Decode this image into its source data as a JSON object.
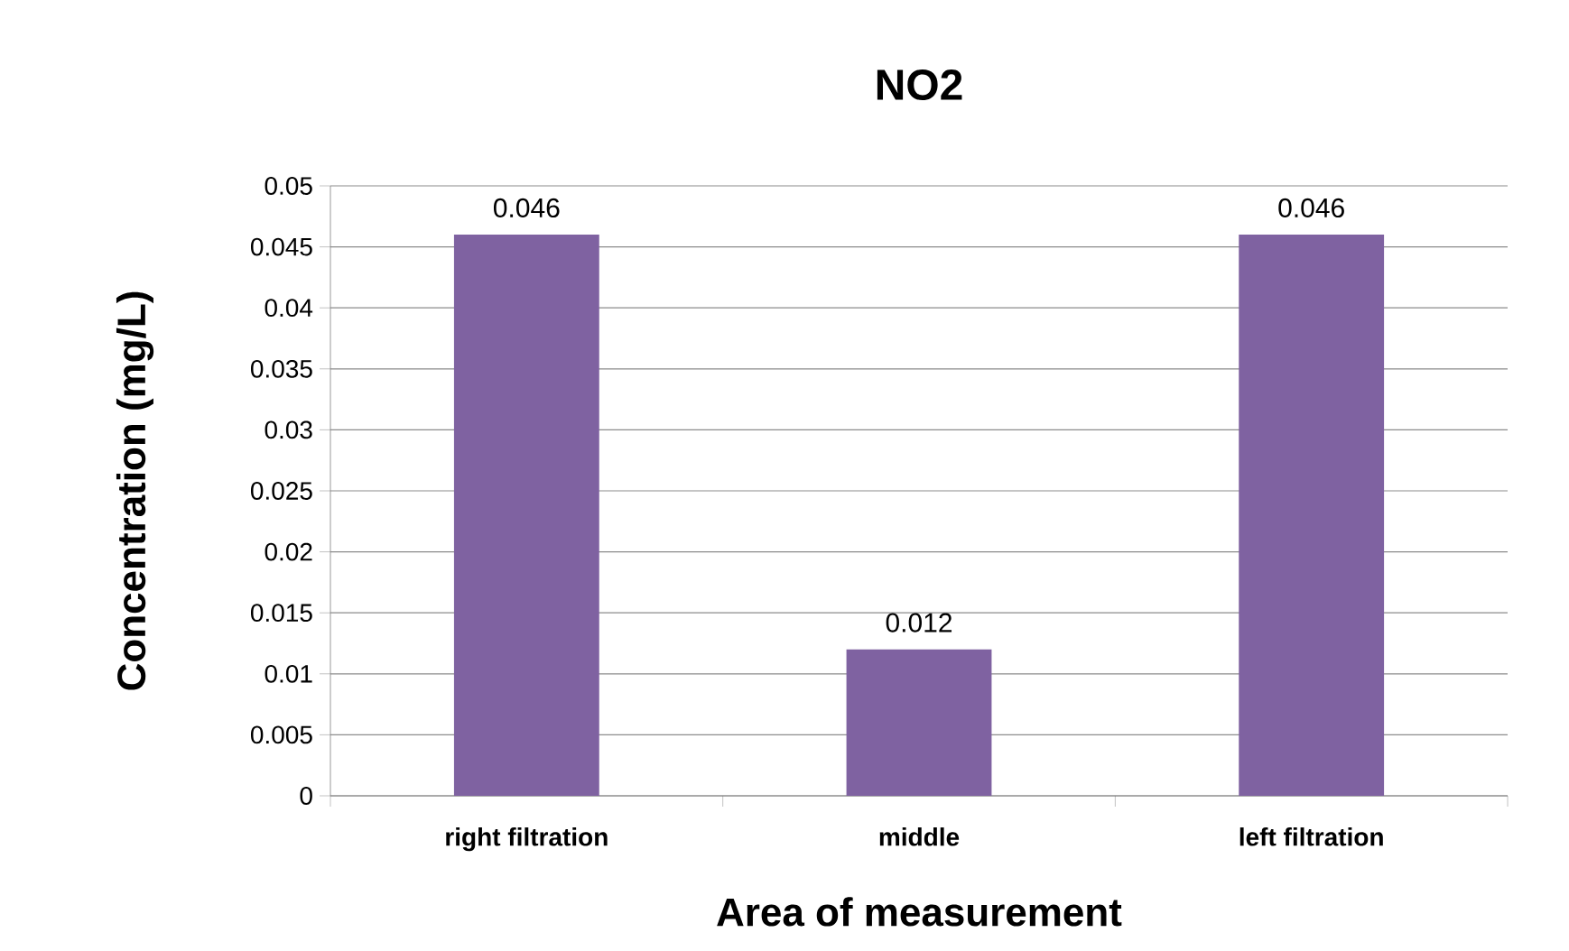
{
  "chart_data": {
    "type": "bar",
    "title": "NO2",
    "xlabel": "Area of measurement",
    "ylabel": "Concentration (mg/L)",
    "categories": [
      "right filtration",
      "middle",
      "left filtration"
    ],
    "values": [
      0.046,
      0.012,
      0.046
    ],
    "color": "#7f62a1",
    "ylim": [
      0,
      0.05
    ],
    "yticks": [
      0,
      0.005,
      0.01,
      0.015,
      0.02,
      0.025,
      0.03,
      0.035,
      0.04,
      0.045,
      0.05
    ],
    "grid": "y",
    "data_labels": true
  }
}
